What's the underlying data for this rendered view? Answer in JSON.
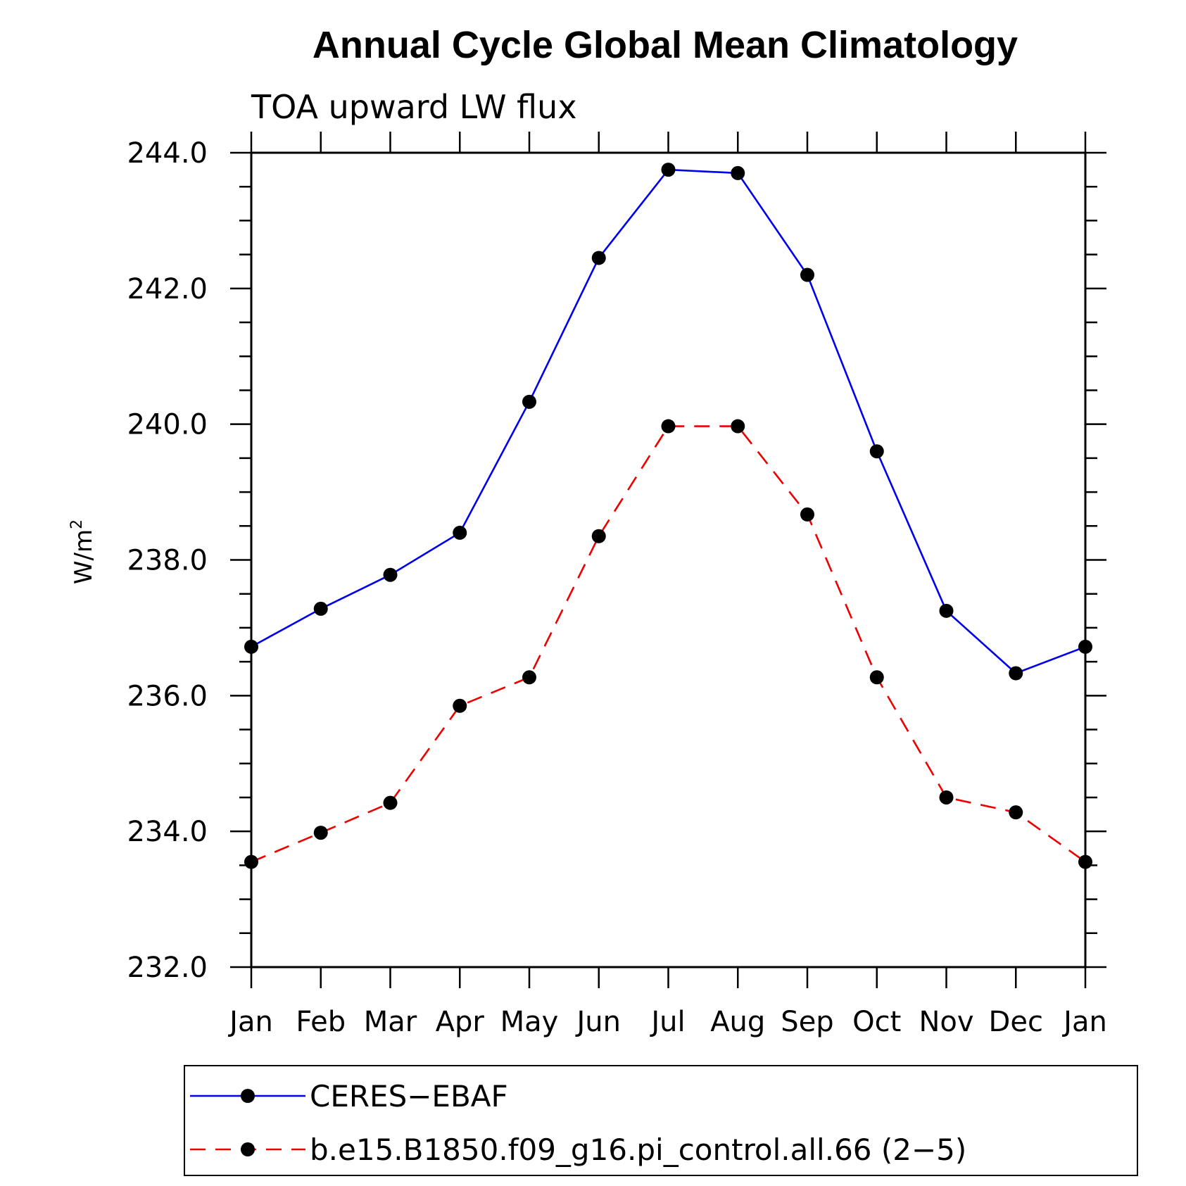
{
  "chart_data": {
    "type": "line",
    "title": "Annual Cycle Global Mean Climatology",
    "subtitle": "TOA upward LW flux",
    "xlabel": "",
    "ylabel_base": "W/m",
    "ylabel_sup": "2",
    "categories": [
      "Jan",
      "Feb",
      "Mar",
      "Apr",
      "May",
      "Jun",
      "Jul",
      "Aug",
      "Sep",
      "Oct",
      "Nov",
      "Dec",
      "Jan"
    ],
    "yticks": [
      "232.0",
      "234.0",
      "236.0",
      "238.0",
      "240.0",
      "242.0",
      "244.0"
    ],
    "ylim": [
      232.0,
      244.0
    ],
    "grid": false,
    "legend_position": "bottom",
    "series": [
      {
        "name": "CERES−EBAF",
        "color": "#0000ee",
        "dash": "solid",
        "marker": "filled-circle",
        "values": [
          236.72,
          237.28,
          237.78,
          238.4,
          240.33,
          242.45,
          243.75,
          243.7,
          242.2,
          239.6,
          237.25,
          236.33,
          236.72
        ]
      },
      {
        "name": "b.e15.B1850.f09_g16.pi_control.all.66 (2−5)",
        "color": "#ee0000",
        "dash": "dashed",
        "marker": "filled-circle",
        "values": [
          233.55,
          233.98,
          234.42,
          235.85,
          236.27,
          238.35,
          239.97,
          239.97,
          238.67,
          236.27,
          234.5,
          234.28,
          233.55
        ]
      }
    ]
  }
}
